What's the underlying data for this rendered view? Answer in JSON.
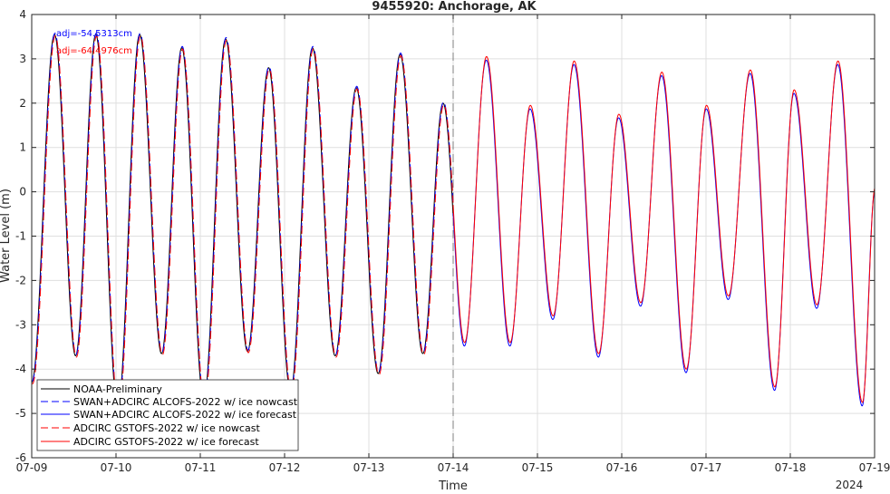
{
  "chart_data": {
    "type": "line",
    "title": "9455920: Anchorage, AK",
    "xlabel": "Time",
    "ylabel": "Water Level (m)",
    "x_tick_labels": [
      "07-09",
      "07-10",
      "07-11",
      "07-12",
      "07-13",
      "07-14",
      "07-15",
      "07-16",
      "07-17",
      "07-18",
      "07-19"
    ],
    "x_secondary_label": "2024",
    "xlim": [
      "2024-07-09",
      "2024-07-19"
    ],
    "ylim": [
      -6,
      4
    ],
    "y_ticks": [
      -6,
      -5,
      -4,
      -3,
      -2,
      -1,
      0,
      1,
      2,
      3,
      4
    ],
    "grid": true,
    "nowcast_forecast_divider": "2024-07-14",
    "annotations": [
      {
        "text": "adj=-54.5313cm",
        "color": "#0000ff"
      },
      {
        "text": "adj=-64.4976cm",
        "color": "#ff0000"
      }
    ],
    "extrema": [
      {
        "day": 0.0,
        "level": -4.3
      },
      {
        "day": 0.27,
        "level": 3.55
      },
      {
        "day": 0.52,
        "level": -3.7
      },
      {
        "day": 0.76,
        "level": 3.55
      },
      {
        "day": 1.02,
        "level": -4.9
      },
      {
        "day": 1.28,
        "level": 3.55
      },
      {
        "day": 1.54,
        "level": -3.65
      },
      {
        "day": 1.78,
        "level": 3.25
      },
      {
        "day": 2.04,
        "level": -4.7
      },
      {
        "day": 2.3,
        "level": 3.45
      },
      {
        "day": 2.56,
        "level": -3.6
      },
      {
        "day": 2.81,
        "level": 2.8
      },
      {
        "day": 3.07,
        "level": -4.5
      },
      {
        "day": 3.33,
        "level": 3.25
      },
      {
        "day": 3.6,
        "level": -3.7
      },
      {
        "day": 3.85,
        "level": 2.35
      },
      {
        "day": 4.11,
        "level": -4.1
      },
      {
        "day": 4.37,
        "level": 3.1
      },
      {
        "day": 4.64,
        "level": -3.65
      },
      {
        "day": 4.88,
        "level": 2.0
      },
      {
        "day": 5.13,
        "level": -3.45
      },
      {
        "day": 5.39,
        "level": 3.0
      },
      {
        "day": 5.67,
        "level": -3.45
      },
      {
        "day": 5.91,
        "level": 1.9
      },
      {
        "day": 6.18,
        "level": -2.85
      },
      {
        "day": 6.43,
        "level": 2.9
      },
      {
        "day": 6.72,
        "level": -3.7
      },
      {
        "day": 6.96,
        "level": 1.7
      },
      {
        "day": 7.22,
        "level": -2.55
      },
      {
        "day": 7.47,
        "level": 2.65
      },
      {
        "day": 7.76,
        "level": -4.05
      },
      {
        "day": 8.0,
        "level": 1.9
      },
      {
        "day": 8.26,
        "level": -2.4
      },
      {
        "day": 8.52,
        "level": 2.7
      },
      {
        "day": 8.81,
        "level": -4.45
      },
      {
        "day": 9.04,
        "level": 2.25
      },
      {
        "day": 9.31,
        "level": -2.6
      },
      {
        "day": 9.56,
        "level": 2.9
      },
      {
        "day": 9.85,
        "level": -4.8
      },
      {
        "day": 10.0,
        "level": 0.05
      }
    ],
    "series": [
      {
        "name": "NOAA-Preliminary",
        "color": "#000000",
        "dash": "solid",
        "end_day": 5.0,
        "level_offset": 0.0,
        "day_shift": 0.0
      },
      {
        "name": "SWAN+ADCIRC ALCOFS-2022 w/ ice nowcast",
        "color": "#0000ff",
        "dash": "dashed",
        "end_day": 5.0,
        "level_offset": 0.03,
        "day_shift": 0.006
      },
      {
        "name": "SWAN+ADCIRC ALCOFS-2022 w/ ice forecast",
        "color": "#0000ff",
        "dash": "solid",
        "start_day": 5.0,
        "level_offset": -0.03,
        "day_shift": 0.003
      },
      {
        "name": "ADCIRC GSTOFS-2022 w/ ice nowcast",
        "color": "#ff0000",
        "dash": "dashed",
        "end_day": 5.0,
        "level_offset": -0.03,
        "day_shift": 0.01
      },
      {
        "name": "ADCIRC GSTOFS-2022 w/ ice forecast",
        "color": "#ff0000",
        "dash": "solid",
        "start_day": 5.0,
        "level_offset": 0.05,
        "day_shift": 0.006
      }
    ]
  }
}
